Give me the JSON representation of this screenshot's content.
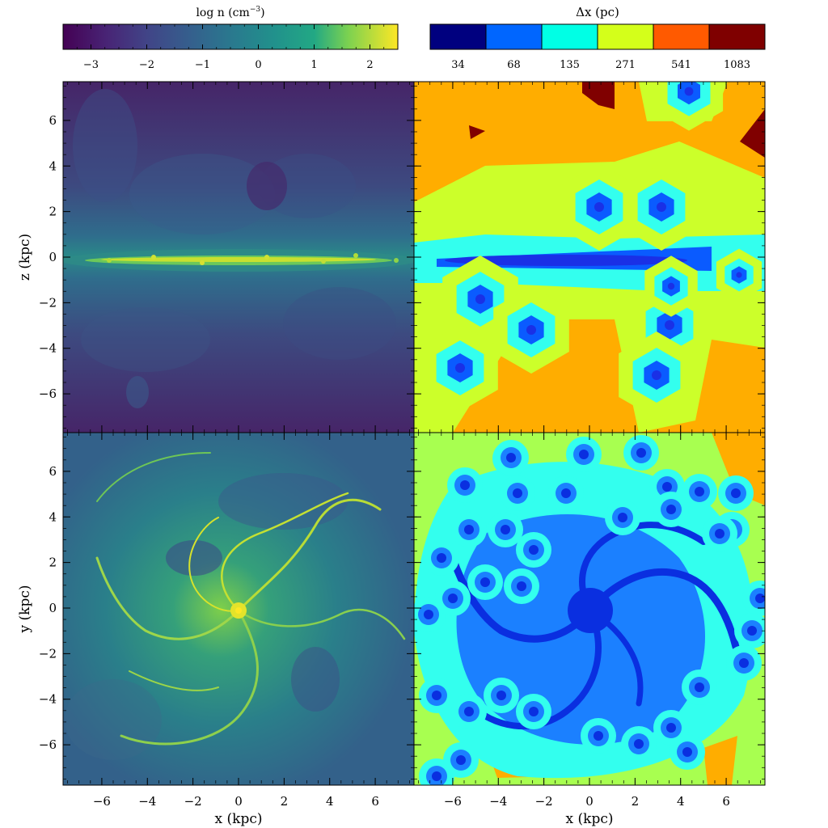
{
  "figure": {
    "colorbar_density": {
      "title": "log n (cm",
      "title_exp": "−3",
      "title_close": ")",
      "ticks": [
        "−3",
        "−2",
        "−1",
        "0",
        "1",
        "2"
      ],
      "tick_values": [
        -3,
        -2,
        -1,
        0,
        1,
        2
      ],
      "range": [
        -3.5,
        2.5
      ],
      "colormap": "viridis"
    },
    "colorbar_resolution": {
      "title": "Δx (pc)",
      "levels": [
        "34",
        "68",
        "135",
        "271",
        "541",
        "1083"
      ],
      "colors": [
        "#00007f",
        "#0066ff",
        "#00ffe5",
        "#d4ff1a",
        "#ff5a00",
        "#7f0000"
      ]
    },
    "axes": {
      "x_label": "x (kpc)",
      "z_label": "z (kpc)",
      "y_label": "y (kpc)",
      "tick_labels": [
        "−6",
        "−4",
        "−2",
        "0",
        "2",
        "4",
        "6"
      ],
      "tick_values": [
        -6,
        -4,
        -2,
        0,
        2,
        4,
        6
      ],
      "range": [
        -7.7,
        7.7
      ]
    },
    "panels": [
      {
        "name": "density-edge-on",
        "field": "density",
        "view": "edge-on"
      },
      {
        "name": "resolution-edge-on",
        "field": "resolution",
        "view": "edge-on"
      },
      {
        "name": "density-face-on",
        "field": "density",
        "view": "face-on"
      },
      {
        "name": "resolution-face-on",
        "field": "resolution",
        "view": "face-on"
      }
    ]
  }
}
